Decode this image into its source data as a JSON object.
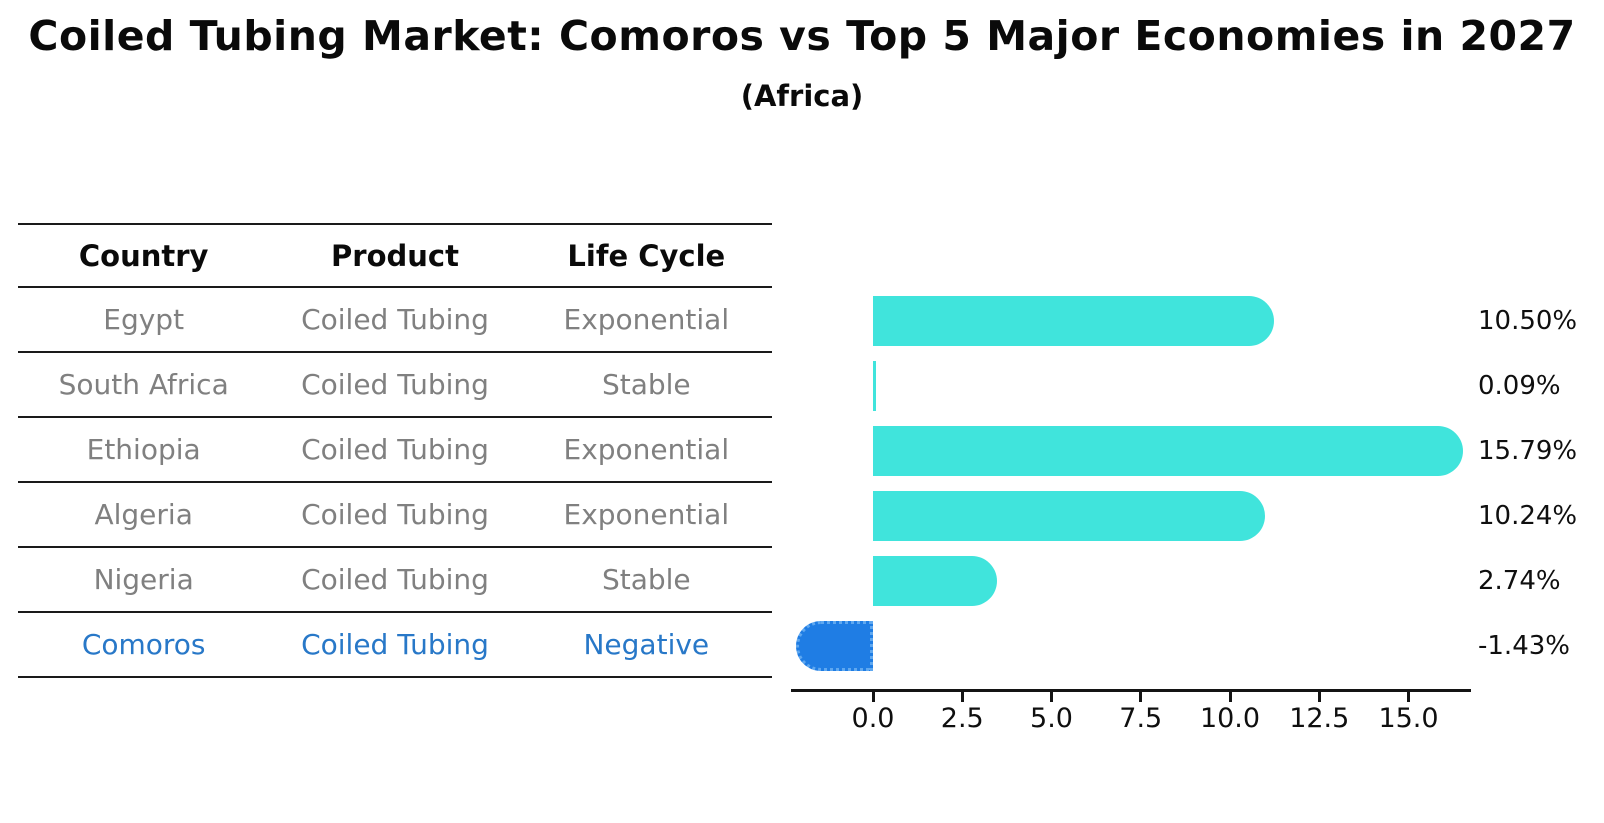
{
  "header": {
    "title": "Coiled Tubing Market: Comoros vs Top 5 Major Economies in 2027",
    "subtitle": "(Africa)"
  },
  "table": {
    "columns": [
      "Country",
      "Product",
      "Life Cycle"
    ],
    "rows": [
      {
        "country": "Egypt",
        "product": "Coiled Tubing",
        "life_cycle": "Exponential",
        "highlighted": false
      },
      {
        "country": "South Africa",
        "product": "Coiled Tubing",
        "life_cycle": "Stable",
        "highlighted": false
      },
      {
        "country": "Ethiopia",
        "product": "Coiled Tubing",
        "life_cycle": "Exponential",
        "highlighted": false
      },
      {
        "country": "Algeria",
        "product": "Coiled Tubing",
        "life_cycle": "Exponential",
        "highlighted": false
      },
      {
        "country": "Nigeria",
        "product": "Coiled Tubing",
        "life_cycle": "Stable",
        "highlighted": false
      },
      {
        "country": "Comoros",
        "product": "Coiled Tubing",
        "life_cycle": "Negative",
        "highlighted": true
      }
    ]
  },
  "chart_data": {
    "type": "bar",
    "orientation": "horizontal",
    "categories": [
      "Egypt",
      "South Africa",
      "Ethiopia",
      "Algeria",
      "Nigeria",
      "Comoros"
    ],
    "values": [
      10.5,
      0.09,
      15.79,
      10.24,
      2.74,
      -1.43
    ],
    "value_labels": [
      "10.50%",
      "0.09%",
      "15.79%",
      "10.24%",
      "2.74%",
      "-1.43%"
    ],
    "x_ticks": [
      0.0,
      2.5,
      5.0,
      7.5,
      10.0,
      12.5,
      15.0
    ],
    "x_tick_labels": [
      "0.0",
      "2.5",
      "5.0",
      "7.5",
      "10.0",
      "12.5",
      "15.0"
    ],
    "xlim": [
      -2.3,
      16.75
    ],
    "grid": false,
    "legend": null,
    "highlight_category": "Comoros",
    "title": "Coiled Tubing Market: Comoros vs Top 5 Major Economies in 2027",
    "xlabel": "",
    "ylabel": ""
  },
  "colors": {
    "positive_bar": "#40E4DC",
    "negative_bar": "#1F7DE4",
    "negative_bar_edge": "#5FA8F0",
    "table_text": "#808080",
    "highlight_text": "#2878C8",
    "axis": "#141414",
    "title_text": "#0A0A0A",
    "background": "#FFFFFF"
  }
}
